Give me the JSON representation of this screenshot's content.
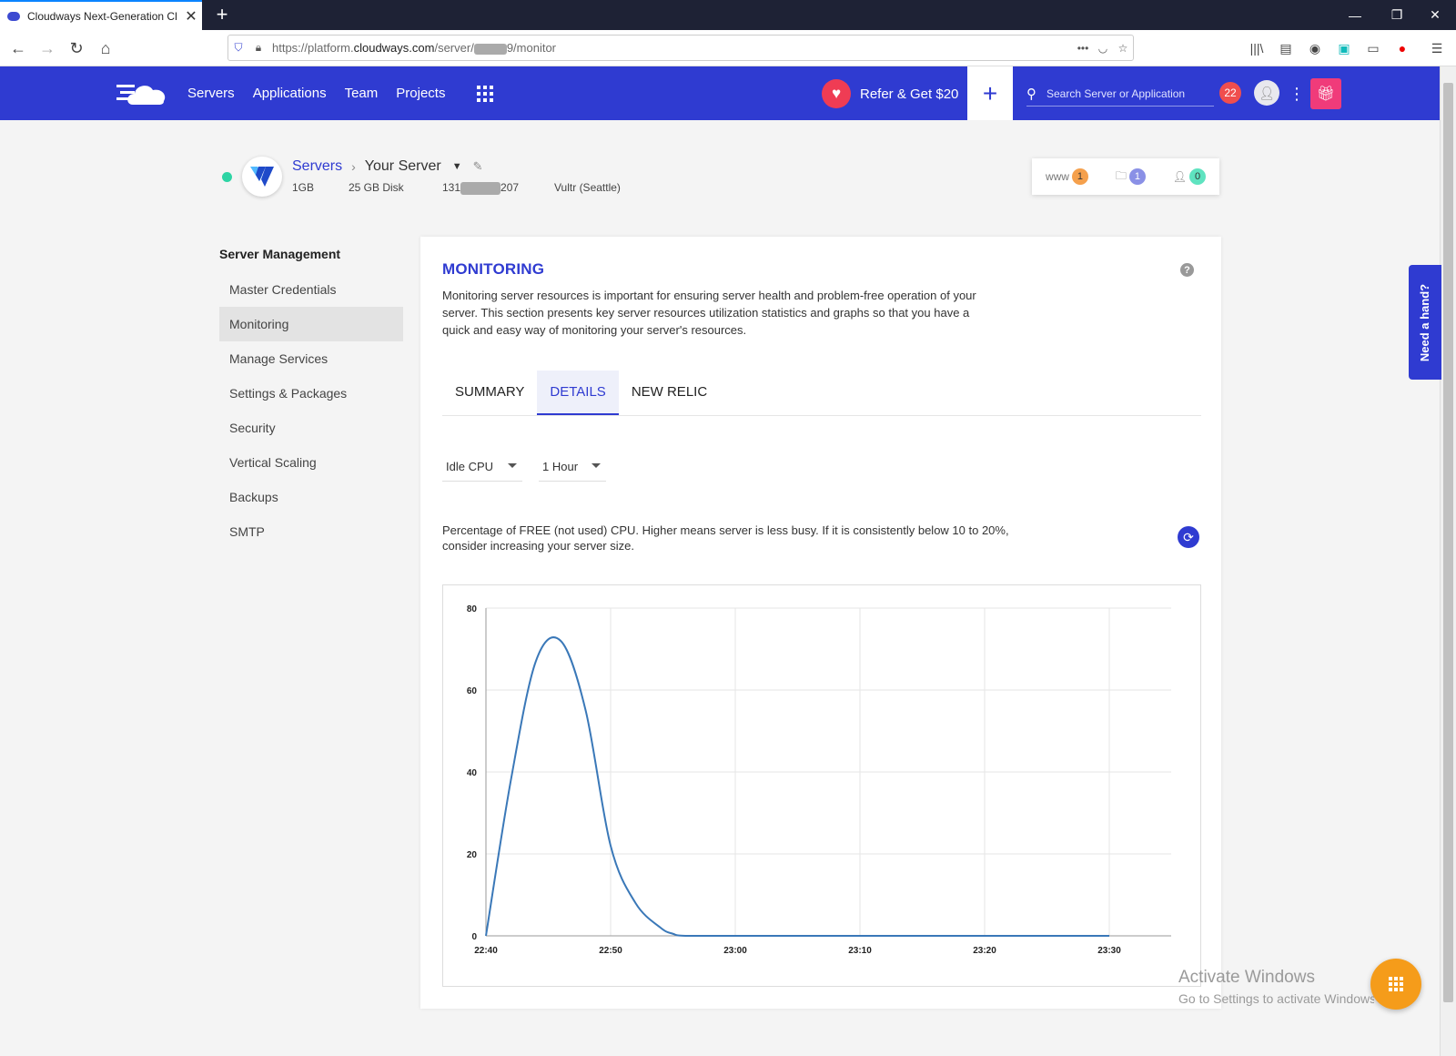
{
  "browser": {
    "tab_title": "Cloudways Next-Generation Cl",
    "url_prefix": "https://platform.",
    "url_domain": "cloudways.com",
    "url_path_start": "/server/",
    "url_path_end": "9/monitor"
  },
  "header": {
    "nav": [
      "Servers",
      "Applications",
      "Team",
      "Projects"
    ],
    "refer_label": "Refer & Get $20",
    "search_placeholder": "Search Server or Application",
    "notifications": "22"
  },
  "server": {
    "breadcrumb_root": "Servers",
    "name": "Your Server",
    "ram": "1GB",
    "disk": "25 GB Disk",
    "ip_start": "131",
    "ip_end": "207",
    "location": "Vultr (Seattle)",
    "counts": {
      "www": "1",
      "folders": "1",
      "users": "0"
    },
    "www_label": "www"
  },
  "sidebar": {
    "title": "Server Management",
    "items": [
      "Master Credentials",
      "Monitoring",
      "Manage Services",
      "Settings & Packages",
      "Security",
      "Vertical Scaling",
      "Backups",
      "SMTP"
    ],
    "active": "Monitoring"
  },
  "monitoring": {
    "title": "MONITORING",
    "description": "Monitoring server resources is important for ensuring server health and problem-free operation of your server. This section presents key server resources utilization statistics and graphs so that you have a quick and easy way of monitoring your server's resources.",
    "tabs": [
      "SUMMARY",
      "DETAILS",
      "NEW RELIC"
    ],
    "active_tab": "DETAILS",
    "metric_select": "Idle CPU",
    "range_select": "1 Hour",
    "metric_description": "Percentage of FREE (not used) CPU. Higher means server is less busy. If it is consistently below 10 to 20%, consider increasing your server size."
  },
  "chart_data": {
    "type": "line",
    "x": [
      "22:40",
      "22:42",
      "22:44",
      "22:46",
      "22:48",
      "22:50",
      "22:52",
      "22:54",
      "22:55",
      "22:56",
      "23:00",
      "23:10",
      "23:20",
      "23:30"
    ],
    "y": [
      0,
      38,
      67,
      72,
      55,
      22,
      8,
      2,
      0.5,
      0,
      0,
      0,
      0,
      0
    ],
    "x_ticks": [
      "22:40",
      "22:50",
      "23:00",
      "23:10",
      "23:20",
      "23:30"
    ],
    "y_ticks": [
      0,
      20,
      40,
      60,
      80
    ],
    "ylim": [
      0,
      80
    ],
    "xlabel": "",
    "ylabel": "",
    "grid": true,
    "line_color": "#3a78b8"
  },
  "overlays": {
    "need_hand": "Need a hand?",
    "activate_title": "Activate Windows",
    "activate_sub": "Go to Settings to activate Windows."
  },
  "colors": {
    "brand": "#2f3bd1",
    "accent_orange": "#f59c1a",
    "status_green": "#2dd4a4"
  }
}
